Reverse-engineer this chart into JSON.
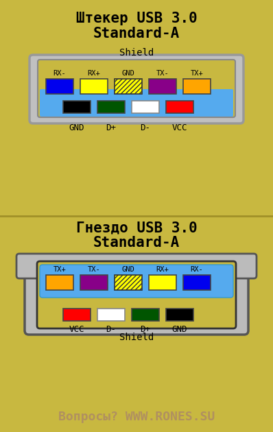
{
  "bg_color": "#C8B840",
  "title1_line1": "Штекер USB 3.0",
  "title1_line2": "Standard-A",
  "title2_line1": "Гнездо USB 3.0",
  "title2_line2": "Standard-A",
  "footer": "Вопросы? WWW.RONES.SU",
  "footer_color": "#B09060",
  "plug_shield_label": "Shield",
  "socket_shield_label": "Shield",
  "plug_usb3_pins": [
    {
      "label": "RX-",
      "color": "#0000EE"
    },
    {
      "label": "RX+",
      "color": "#FFFF00"
    },
    {
      "label": "GND",
      "color": "hatched"
    },
    {
      "label": "TX-",
      "color": "#880088"
    },
    {
      "label": "TX+",
      "color": "#FFA500"
    }
  ],
  "plug_usb2_pins": [
    {
      "label": "GND",
      "color": "#000000"
    },
    {
      "label": "D+",
      "color": "#005500"
    },
    {
      "label": "D-",
      "color": "#FFFFFF"
    },
    {
      "label": "VCC",
      "color": "#FF0000"
    }
  ],
  "socket_usb3_pins": [
    {
      "label": "TX+",
      "color": "#FFA500"
    },
    {
      "label": "TX-",
      "color": "#880088"
    },
    {
      "label": "GND",
      "color": "hatched"
    },
    {
      "label": "RX+",
      "color": "#FFFF00"
    },
    {
      "label": "RX-",
      "color": "#0000EE"
    }
  ],
  "socket_usb2_pins": [
    {
      "label": "VCC",
      "color": "#FF0000"
    },
    {
      "label": "D-",
      "color": "#FFFFFF"
    },
    {
      "label": "D+",
      "color": "#005500"
    },
    {
      "label": "GND",
      "color": "#000000"
    }
  ]
}
